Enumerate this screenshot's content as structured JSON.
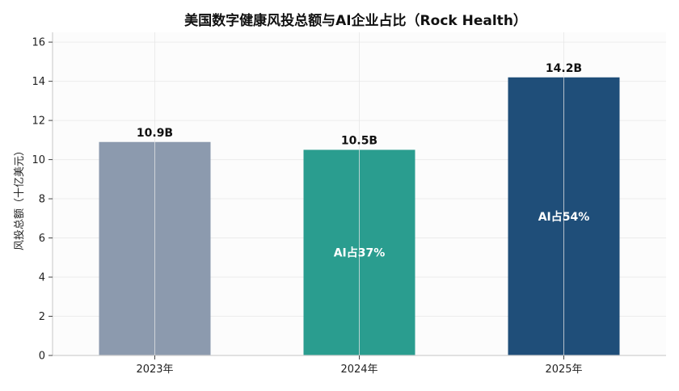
{
  "chart_data": {
    "type": "bar",
    "title": "美国数字健康风投总额与AI企业占比（Rock Health）",
    "xlabel": "",
    "ylabel": "风投总额（十亿美元）",
    "categories": [
      "2023年",
      "2024年",
      "2025年"
    ],
    "values": [
      10.9,
      10.5,
      14.2
    ],
    "value_labels": [
      "10.9B",
      "10.5B",
      "14.2B"
    ],
    "ai_share_labels": [
      "",
      "AI占37%",
      "AI占54%"
    ],
    "ai_share_percent": [
      null,
      37,
      54
    ],
    "ylim": [
      0,
      16.5
    ],
    "yticks": [
      0,
      2,
      4,
      6,
      8,
      10,
      12,
      14,
      16
    ],
    "grid": true,
    "legend": "none",
    "colors": [
      "#8c9aae",
      "#2a9d8f",
      "#1f4e79"
    ]
  }
}
